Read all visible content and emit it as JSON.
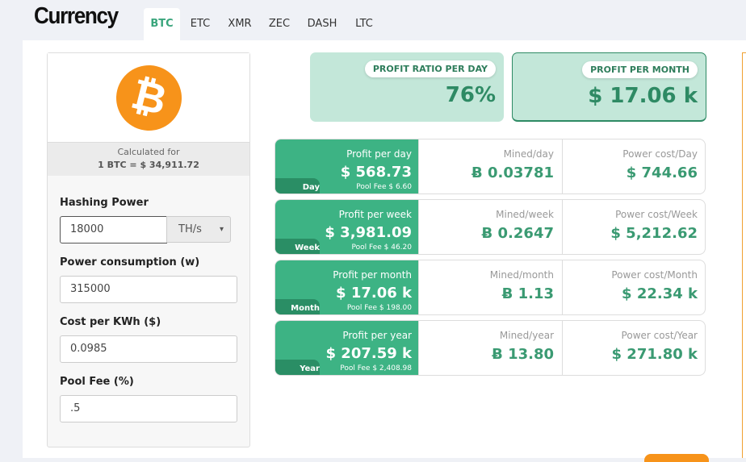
{
  "header": {
    "title": "Currency",
    "tabs": [
      "BTC",
      "ETC",
      "XMR",
      "ZEC",
      "DASH",
      "LTC"
    ],
    "active_tab": "BTC"
  },
  "coin": {
    "icon": "bitcoin-icon",
    "symbol": "₿",
    "calculated_for": "Calculated for",
    "rate": "1 BTC = $ 34,911.72"
  },
  "form": {
    "hashing_power": {
      "label": "Hashing Power",
      "value": "18000",
      "unit": "TH/s"
    },
    "power_consumption": {
      "label": "Power consumption (w)",
      "value": "315000"
    },
    "cost_per_kwh": {
      "label": "Cost per KWh ($)",
      "value": "0.0985"
    },
    "pool_fee": {
      "label": "Pool Fee (%)",
      "value": ".5"
    }
  },
  "summary": {
    "ratio_label": "PROFIT RATIO PER DAY",
    "ratio_value": "76%",
    "month_label": "PROFIT PER MONTH",
    "month_value": "$ 17.06 k"
  },
  "rows": [
    {
      "tag": "Day",
      "profit_label": "Profit per day",
      "profit": "$ 568.73",
      "fee": "Pool Fee $ 6.60",
      "mined_label": "Mined/day",
      "mined": "Ƀ 0.03781",
      "cost_label": "Power cost/Day",
      "cost": "$ 744.66"
    },
    {
      "tag": "Week",
      "profit_label": "Profit per week",
      "profit": "$ 3,981.09",
      "fee": "Pool Fee $ 46.20",
      "mined_label": "Mined/week",
      "mined": "Ƀ 0.2647",
      "cost_label": "Power cost/Week",
      "cost": "$ 5,212.62"
    },
    {
      "tag": "Month",
      "profit_label": "Profit per month",
      "profit": "$ 17.06 k",
      "fee": "Pool Fee $ 198.00",
      "mined_label": "Mined/month",
      "mined": "Ƀ 1.13",
      "cost_label": "Power cost/Month",
      "cost": "$ 22.34 k"
    },
    {
      "tag": "Year",
      "profit_label": "Profit per year",
      "profit": "$ 207.59 k",
      "fee": "Pool Fee $ 2,408.98",
      "mined_label": "Mined/year",
      "mined": "Ƀ 13.80",
      "cost_label": "Power cost/Year",
      "cost": "$ 271.80 k"
    }
  ],
  "colors": {
    "accent": "#3db384",
    "bitcoin": "#f7931a",
    "summary_bg": "#c3e7d9"
  }
}
